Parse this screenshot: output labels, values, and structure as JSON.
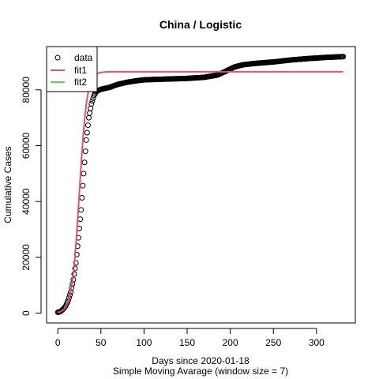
{
  "chart_data": {
    "type": "scatter",
    "title": "China / Logistic",
    "xlabel": "Days since 2020-01-18",
    "subtitle": "Simple Moving Avarage (window size = 7)",
    "ylabel": "Cumulative Cases",
    "xlim": [
      -13,
      345
    ],
    "ylim": [
      -3500,
      95500
    ],
    "x_ticks": [
      0,
      50,
      100,
      150,
      200,
      250,
      300
    ],
    "y_ticks": [
      0,
      20000,
      40000,
      60000,
      80000
    ],
    "grid": false,
    "legend": {
      "position": "top-left",
      "entries": [
        {
          "label": "data",
          "kind": "circle",
          "color": "#000000"
        },
        {
          "label": "fit1",
          "kind": "line",
          "color": "#DF536B"
        },
        {
          "label": "fit2",
          "kind": "line",
          "color": "#61D04F"
        }
      ]
    },
    "data_series": {
      "name": "data",
      "color": "#000000",
      "x_range": [
        0,
        331
      ],
      "anchors": [
        [
          0,
          300
        ],
        [
          3,
          600
        ],
        [
          6,
          1400
        ],
        [
          9,
          2500
        ],
        [
          12,
          4500
        ],
        [
          15,
          7500
        ],
        [
          18,
          12000
        ],
        [
          21,
          18000
        ],
        [
          24,
          27000
        ],
        [
          27,
          37000
        ],
        [
          30,
          50000
        ],
        [
          33,
          62000
        ],
        [
          36,
          70000
        ],
        [
          39,
          75000
        ],
        [
          42,
          78000
        ],
        [
          45,
          79500
        ],
        [
          50,
          80200
        ],
        [
          60,
          80900
        ],
        [
          70,
          82000
        ],
        [
          80,
          82700
        ],
        [
          90,
          83200
        ],
        [
          100,
          83600
        ],
        [
          120,
          83800
        ],
        [
          150,
          84100
        ],
        [
          170,
          84500
        ],
        [
          185,
          85300
        ],
        [
          195,
          86700
        ],
        [
          205,
          88200
        ],
        [
          215,
          89000
        ],
        [
          230,
          89500
        ],
        [
          250,
          90000
        ],
        [
          270,
          90700
        ],
        [
          290,
          91200
        ],
        [
          310,
          91600
        ],
        [
          331,
          91900
        ]
      ]
    },
    "fit1": {
      "name": "fit1",
      "color": "#DF536B",
      "model": "logistic",
      "K": 86500,
      "r": 0.23,
      "t0": 25,
      "x_range": [
        0,
        331
      ]
    }
  }
}
